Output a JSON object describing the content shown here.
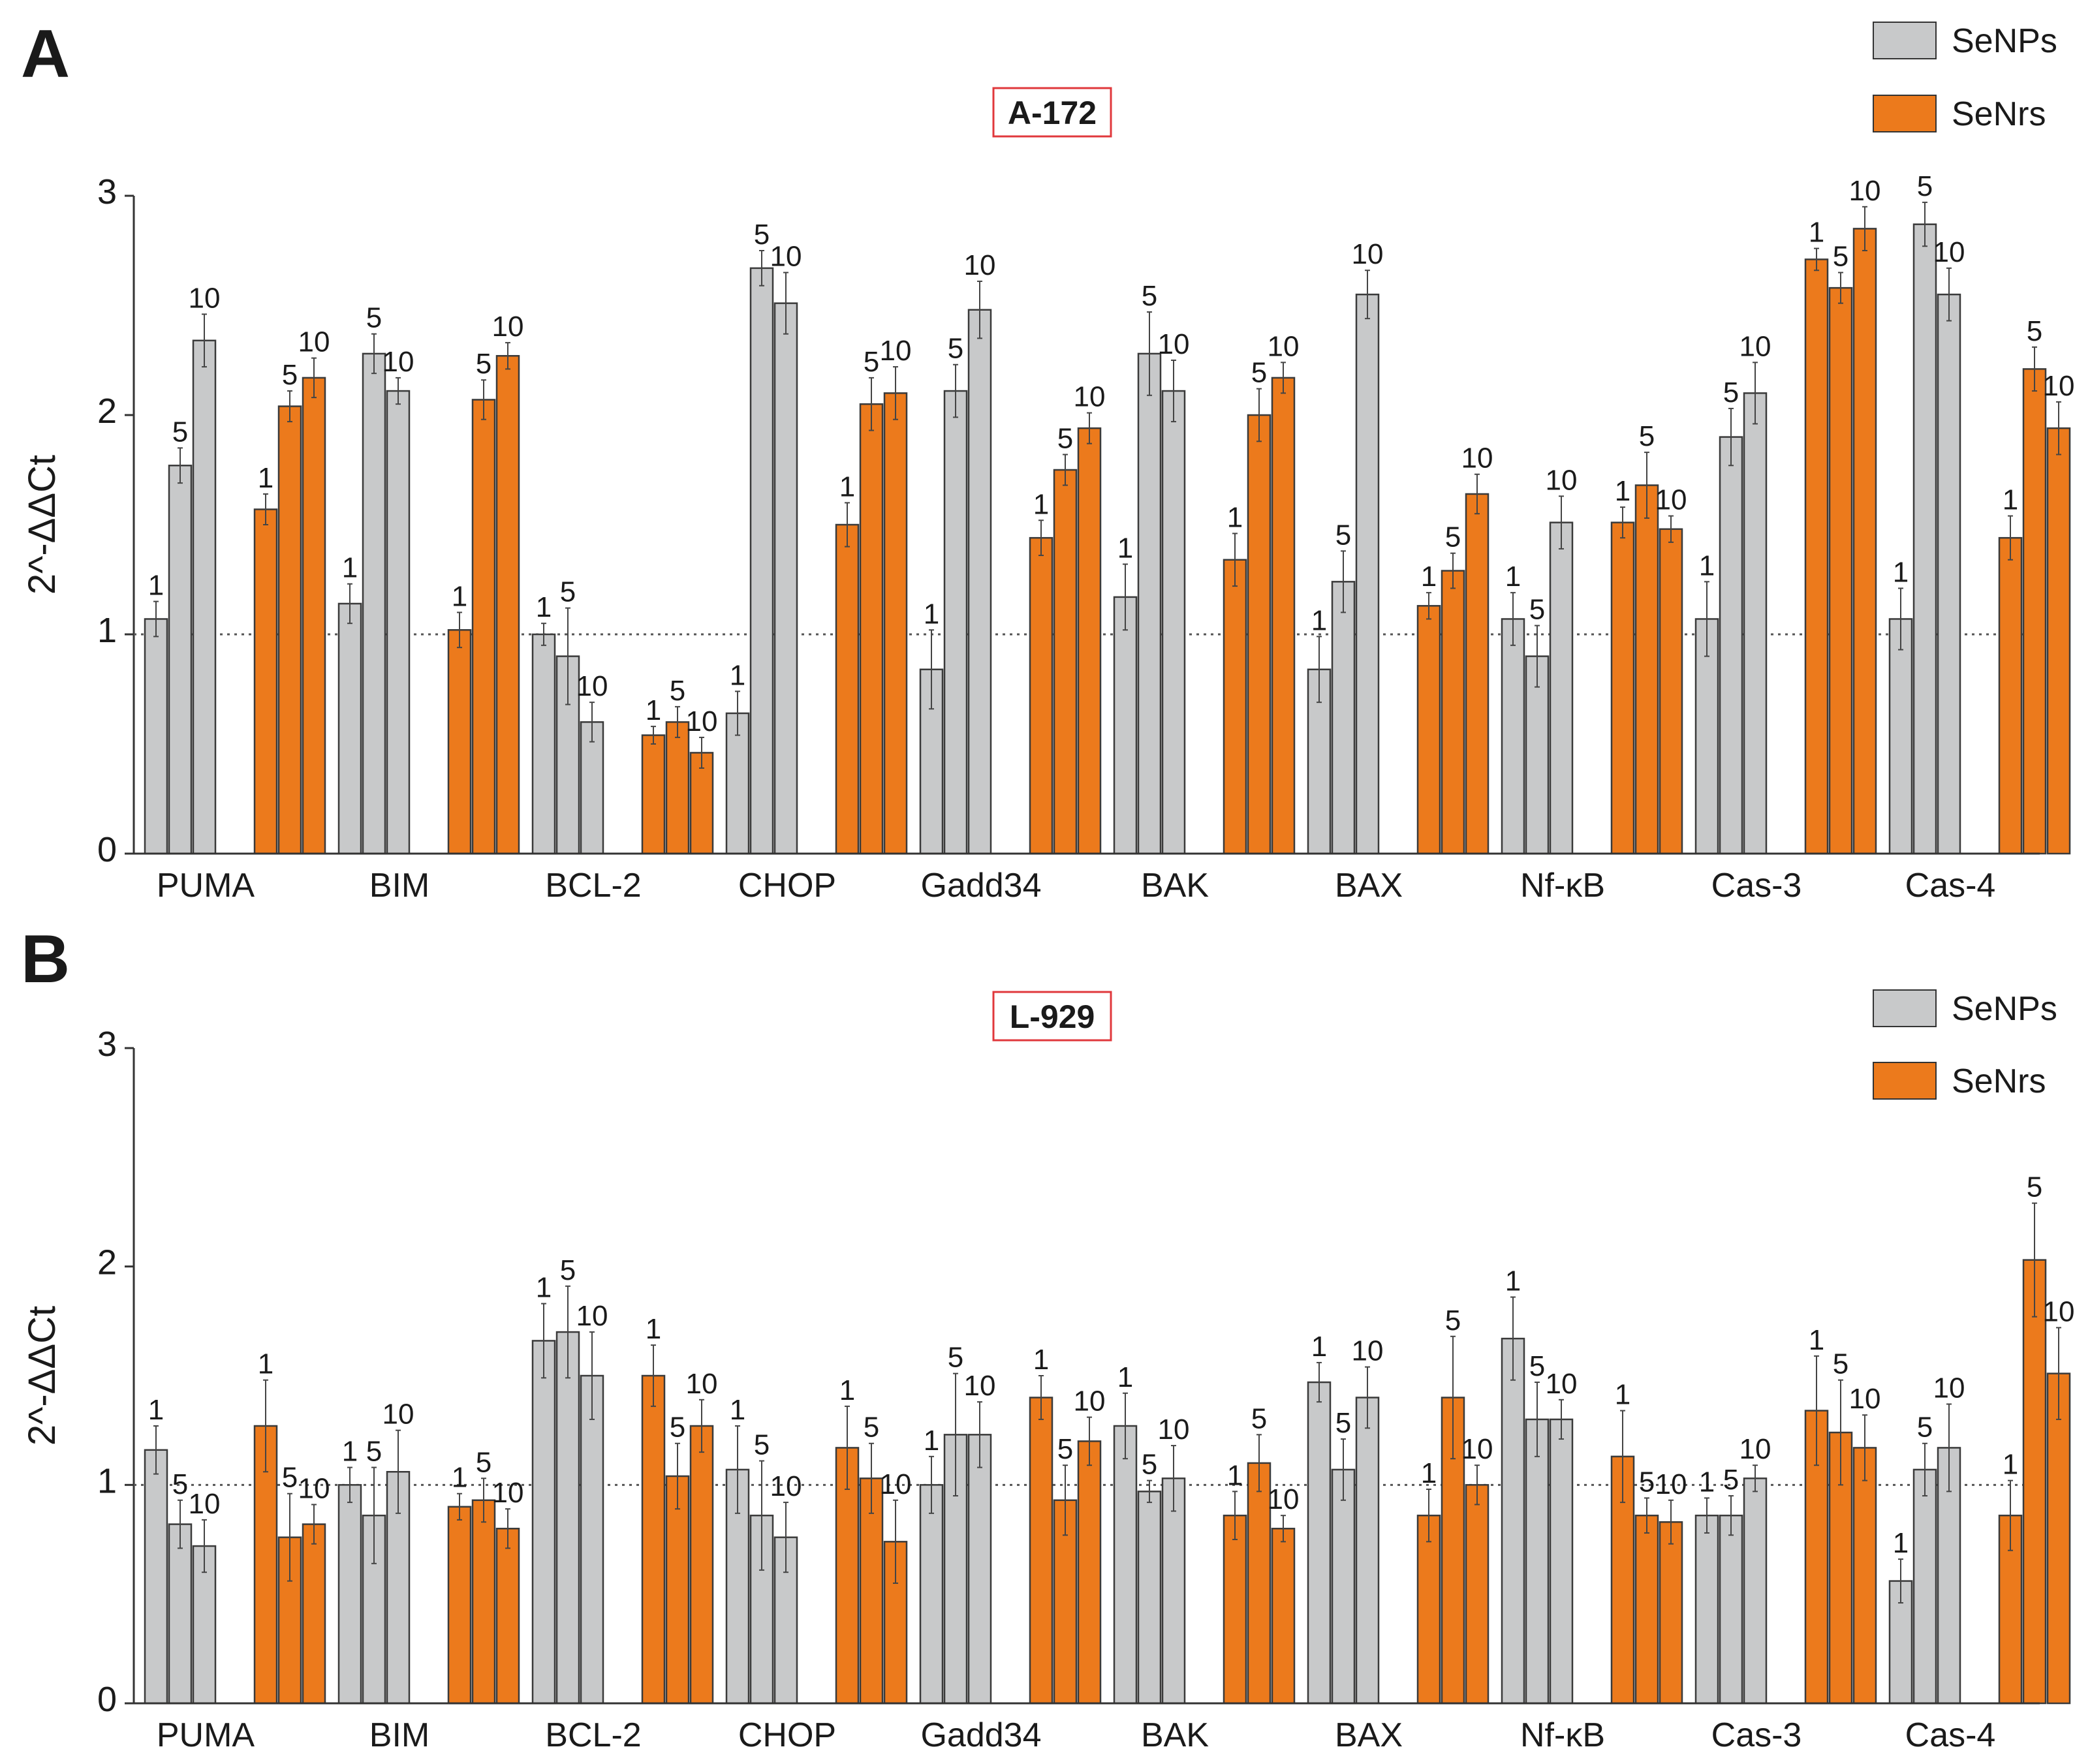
{
  "chart_data": [
    {
      "type": "bar",
      "panel_letter": "A",
      "title": "A-172",
      "ylabel": "2^-ΔΔCt",
      "ylim": [
        0,
        3
      ],
      "yticks": [
        "0",
        "1",
        "2",
        "3"
      ],
      "reference_line": 1,
      "legend": {
        "position": "top-right",
        "items": [
          "SeNPs",
          "SeNrs"
        ]
      },
      "dose_labels": [
        "1",
        "5",
        "10"
      ],
      "colors": {
        "SeNPs": "#c8c9ca",
        "SeNrs": "#ec7a1c"
      },
      "categories": [
        "PUMA",
        "BIM",
        "BCL-2",
        "CHOP",
        "Gadd34",
        "BAK",
        "BAX",
        "Nf-κB",
        "Cas-3",
        "Cas-4"
      ],
      "series": [
        {
          "name": "SeNPs",
          "values": [
            [
              1.07,
              1.77,
              2.34
            ],
            [
              1.14,
              2.28,
              2.11
            ],
            [
              1.0,
              0.9,
              0.6
            ],
            [
              0.64,
              2.67,
              2.51
            ],
            [
              0.84,
              2.11,
              2.48
            ],
            [
              1.17,
              2.28,
              2.11
            ],
            [
              0.84,
              1.24,
              2.55
            ],
            [
              1.07,
              0.9,
              1.51
            ],
            [
              1.07,
              1.9,
              2.1
            ],
            [
              1.07,
              2.87,
              2.55
            ]
          ],
          "errors": [
            [
              0.08,
              0.08,
              0.12
            ],
            [
              0.09,
              0.09,
              0.06
            ],
            [
              0.05,
              0.22,
              0.09
            ],
            [
              0.1,
              0.08,
              0.14
            ],
            [
              0.18,
              0.12,
              0.13
            ],
            [
              0.15,
              0.19,
              0.14
            ],
            [
              0.15,
              0.14,
              0.11
            ],
            [
              0.12,
              0.14,
              0.12
            ],
            [
              0.17,
              0.13,
              0.14
            ],
            [
              0.14,
              0.1,
              0.12
            ]
          ]
        },
        {
          "name": "SeNrs",
          "values": [
            [
              1.57,
              2.04,
              2.17
            ],
            [
              1.02,
              2.07,
              2.27
            ],
            [
              0.54,
              0.6,
              0.46
            ],
            [
              1.5,
              2.05,
              2.1
            ],
            [
              1.44,
              1.75,
              1.94
            ],
            [
              1.34,
              2.0,
              2.17
            ],
            [
              1.13,
              1.29,
              1.64
            ],
            [
              1.51,
              1.68,
              1.48
            ],
            [
              2.71,
              2.58,
              2.85
            ],
            [
              1.44,
              2.21,
              1.94
            ]
          ],
          "errors": [
            [
              0.07,
              0.07,
              0.09
            ],
            [
              0.08,
              0.09,
              0.06
            ],
            [
              0.04,
              0.07,
              0.07
            ],
            [
              0.1,
              0.12,
              0.12
            ],
            [
              0.08,
              0.07,
              0.07
            ],
            [
              0.12,
              0.12,
              0.07
            ],
            [
              0.06,
              0.08,
              0.09
            ],
            [
              0.07,
              0.15,
              0.06
            ],
            [
              0.05,
              0.07,
              0.1
            ],
            [
              0.1,
              0.1,
              0.12
            ]
          ]
        }
      ]
    },
    {
      "type": "bar",
      "panel_letter": "B",
      "title": "L-929",
      "ylabel": "2^-ΔΔCt",
      "ylim": [
        0,
        3
      ],
      "yticks": [
        "0",
        "1",
        "2",
        "3"
      ],
      "reference_line": 1,
      "legend": {
        "position": "top-right",
        "items": [
          "SeNPs",
          "SeNrs"
        ]
      },
      "dose_labels": [
        "1",
        "5",
        "10"
      ],
      "colors": {
        "SeNPs": "#c8c9ca",
        "SeNrs": "#ec7a1c"
      },
      "categories": [
        "PUMA",
        "BIM",
        "BCL-2",
        "CHOP",
        "Gadd34",
        "BAK",
        "BAX",
        "Nf-κB",
        "Cas-3",
        "Cas-4"
      ],
      "series": [
        {
          "name": "SeNPs",
          "values": [
            [
              1.16,
              0.82,
              0.72
            ],
            [
              1.0,
              0.86,
              1.06
            ],
            [
              1.66,
              1.7,
              1.5
            ],
            [
              1.07,
              0.86,
              0.76
            ],
            [
              1.0,
              1.23,
              1.23
            ],
            [
              1.27,
              0.97,
              1.03
            ],
            [
              1.47,
              1.07,
              1.4
            ],
            [
              1.67,
              1.3,
              1.3
            ],
            [
              0.86,
              0.86,
              1.03
            ],
            [
              0.56,
              1.07,
              1.17
            ]
          ],
          "errors": [
            [
              0.11,
              0.11,
              0.12
            ],
            [
              0.08,
              0.22,
              0.19
            ],
            [
              0.17,
              0.21,
              0.2
            ],
            [
              0.2,
              0.25,
              0.16
            ],
            [
              0.13,
              0.28,
              0.15
            ],
            [
              0.15,
              0.05,
              0.15
            ],
            [
              0.09,
              0.14,
              0.14
            ],
            [
              0.19,
              0.17,
              0.09
            ],
            [
              0.08,
              0.09,
              0.06
            ],
            [
              0.1,
              0.12,
              0.2
            ]
          ]
        },
        {
          "name": "SeNrs",
          "values": [
            [
              1.27,
              0.76,
              0.82
            ],
            [
              0.9,
              0.93,
              0.8
            ],
            [
              1.5,
              1.04,
              1.27
            ],
            [
              1.17,
              1.03,
              0.74
            ],
            [
              1.4,
              0.93,
              1.2
            ],
            [
              0.86,
              1.1,
              0.8
            ],
            [
              0.86,
              1.4,
              1.0
            ],
            [
              1.13,
              0.86,
              0.83
            ],
            [
              1.34,
              1.24,
              1.17
            ],
            [
              0.86,
              2.03,
              1.51
            ]
          ],
          "errors": [
            [
              0.21,
              0.2,
              0.09
            ],
            [
              0.06,
              0.1,
              0.09
            ],
            [
              0.14,
              0.15,
              0.12
            ],
            [
              0.19,
              0.16,
              0.19
            ],
            [
              0.1,
              0.16,
              0.11
            ],
            [
              0.11,
              0.13,
              0.06
            ],
            [
              0.12,
              0.28,
              0.09
            ],
            [
              0.21,
              0.08,
              0.1
            ],
            [
              0.25,
              0.24,
              0.15
            ],
            [
              0.16,
              0.26,
              0.21
            ]
          ]
        }
      ]
    }
  ]
}
